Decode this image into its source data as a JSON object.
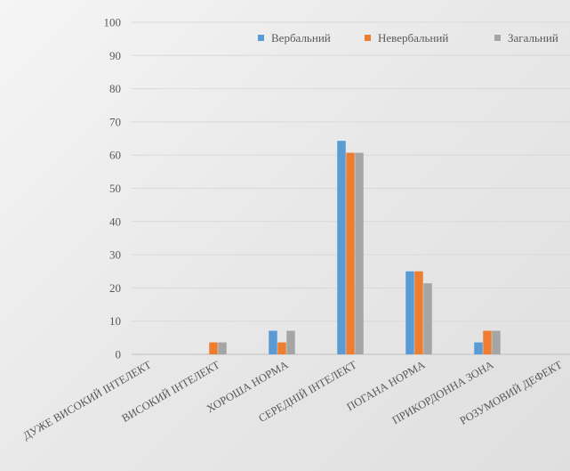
{
  "chart_data": {
    "type": "bar",
    "title": "",
    "xlabel": "",
    "ylabel": "",
    "ylim": [
      0,
      100
    ],
    "yticks": [
      0,
      10,
      20,
      30,
      40,
      50,
      60,
      70,
      80,
      90,
      100
    ],
    "grid": true,
    "legend_position": "top-right",
    "categories": [
      "ДУЖЕ ВИСОКИЙ ІНТЕЛЕКТ",
      "ВИСОКИЙ ІНТЕЛЕКТ",
      "ХОРОША НОРМА",
      "СЕРЕДНІЙ ІНТЕЛЕКТ",
      "ПОГАНА НОРМА",
      "ПРИКОРДОННА ЗОНА",
      "РОЗУМОВИЙ ДЕФЕКТ"
    ],
    "series": [
      {
        "name": "Вербальний",
        "color": "#5B9BD5",
        "values": [
          0,
          0,
          7.1,
          64.3,
          25,
          3.6,
          0
        ]
      },
      {
        "name": "Невербальний",
        "color": "#ED7D31",
        "values": [
          0,
          3.6,
          3.6,
          60.7,
          25,
          7.1,
          0
        ]
      },
      {
        "name": "Загальний",
        "color": "#A5A5A5",
        "values": [
          0,
          3.6,
          7.1,
          60.7,
          21.4,
          7.1,
          0
        ]
      }
    ]
  }
}
